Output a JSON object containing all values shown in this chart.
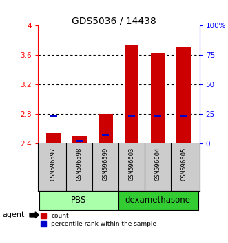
{
  "title": "GDS5036 / 14438",
  "samples": [
    "GSM596597",
    "GSM596598",
    "GSM596599",
    "GSM596603",
    "GSM596604",
    "GSM596605"
  ],
  "red_top": [
    2.54,
    2.5,
    2.8,
    3.73,
    3.63,
    3.71
  ],
  "red_bottom": [
    2.4,
    2.4,
    2.4,
    2.4,
    2.4,
    2.4
  ],
  "blue_values": [
    2.776,
    2.435,
    2.52,
    2.775,
    2.775,
    2.775
  ],
  "ylim_left": [
    2.4,
    4.0
  ],
  "yticks_left": [
    2.4,
    2.8,
    3.2,
    3.6,
    4.0
  ],
  "ytick_labels_left": [
    "2.4",
    "2.8",
    "3.2",
    "3.6",
    "4"
  ],
  "yticks_right": [
    0,
    25,
    50,
    75,
    100
  ],
  "ytick_labels_right": [
    "0",
    "25",
    "50",
    "75",
    "100%"
  ],
  "pbs_color": "#AAFFAA",
  "dexa_color": "#33CC33",
  "sample_bg": "#CCCCCC",
  "red_color": "#CC0000",
  "blue_color": "#0000CC",
  "title_fontsize": 10
}
